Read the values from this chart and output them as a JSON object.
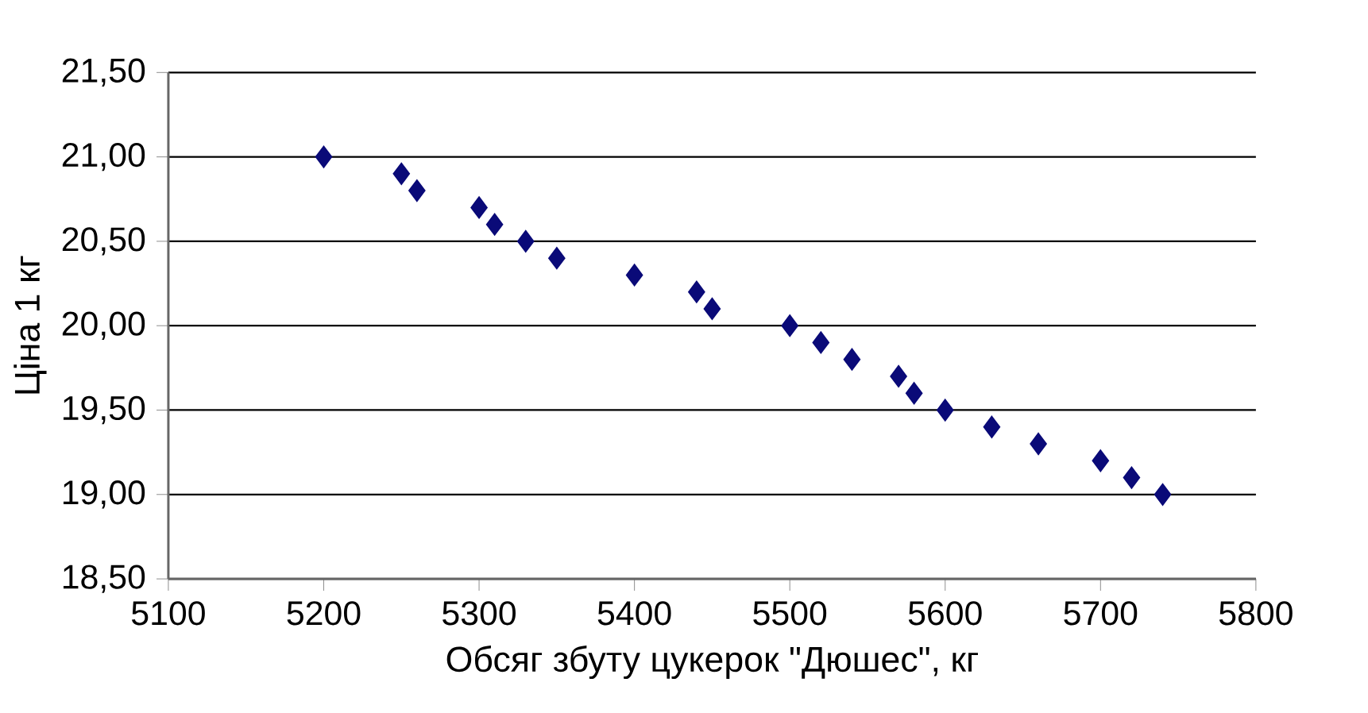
{
  "chart_data": {
    "type": "scatter",
    "xlabel": "Обсяг збуту цукерок \"Дюшес\", кг",
    "ylabel": "Ціна 1 кг",
    "x": [
      5200,
      5250,
      5260,
      5300,
      5310,
      5330,
      5350,
      5400,
      5440,
      5450,
      5500,
      5520,
      5540,
      5570,
      5580,
      5600,
      5630,
      5660,
      5700,
      5720,
      5740
    ],
    "series": [
      {
        "color": "#0a0a78",
        "values": [
          21.0,
          20.9,
          20.8,
          20.7,
          20.6,
          20.5,
          20.4,
          20.3,
          20.2,
          20.1,
          20.0,
          19.9,
          19.8,
          19.7,
          19.6,
          19.5,
          19.4,
          19.3,
          19.2,
          19.1,
          19.0
        ]
      }
    ],
    "xlim": [
      5100,
      5800
    ],
    "xticks": [
      5100,
      5200,
      5300,
      5400,
      5500,
      5600,
      5700,
      5800
    ],
    "ylim": [
      18.5,
      21.5
    ],
    "yticks": [
      {
        "value": 18.5,
        "label": "18,50"
      },
      {
        "value": 19.0,
        "label": "19,00"
      },
      {
        "value": 19.5,
        "label": "19,50"
      },
      {
        "value": 20.0,
        "label": "20,00"
      },
      {
        "value": 20.5,
        "label": "20,50"
      },
      {
        "value": 21.0,
        "label": "21,00"
      },
      {
        "value": 21.5,
        "label": "21,50"
      }
    ],
    "grid": "y",
    "marker": "diamond"
  }
}
